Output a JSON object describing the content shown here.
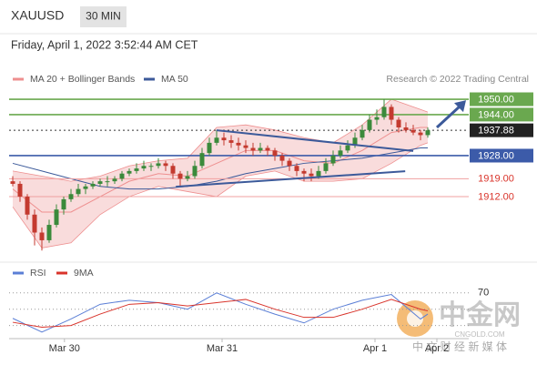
{
  "header": {
    "symbol": "XAUUSD",
    "timeframe": "30 MIN",
    "datetime": "Friday, April 1, 2022 3:52:44 AM CET",
    "credit": "Research © 2022 Trading Central"
  },
  "watermark": {
    "logo": "中金网",
    "site": "CNGOLD.COM",
    "tagline": "中 文 财 经 新 媒 体"
  },
  "chart_data": [
    {
      "type": "candlestick",
      "ylim": [
        1889.3,
        1953.2
      ],
      "xlim": [
        -1,
        63
      ],
      "xticks": [
        {
          "value": 7.1,
          "label": "Mar 30"
        },
        {
          "value": 28.75,
          "label": "Mar 31"
        },
        {
          "value": 49.75,
          "label": "Apr 1"
        },
        {
          "value": 58.25,
          "label": "Apr 2"
        }
      ],
      "up_color": "#3b8a3b",
      "down_color": "#c43a2f",
      "candles": [
        [
          1918,
          1920,
          1916,
          1917
        ],
        [
          1917,
          1918,
          1910,
          1912
        ],
        [
          1912,
          1913,
          1903,
          1905
        ],
        [
          1905,
          1907,
          1893,
          1898
        ],
        [
          1898,
          1900,
          1891,
          1895
        ],
        [
          1895,
          1903,
          1894,
          1901
        ],
        [
          1901,
          1909,
          1900,
          1907
        ],
        [
          1907,
          1912,
          1905,
          1911
        ],
        [
          1911,
          1915,
          1910,
          1913
        ],
        [
          1913,
          1917,
          1912,
          1915
        ],
        [
          1915,
          1917,
          1913,
          1916
        ],
        [
          1916,
          1918,
          1915,
          1917
        ],
        [
          1917,
          1919,
          1916,
          1918
        ],
        [
          1918,
          1920,
          1916,
          1918
        ],
        [
          1918,
          1920,
          1917,
          1919
        ],
        [
          1919,
          1922,
          1918,
          1921
        ],
        [
          1921,
          1923,
          1920,
          1922
        ],
        [
          1922,
          1925,
          1921,
          1923
        ],
        [
          1923,
          1926,
          1922,
          1924
        ],
        [
          1924,
          1925,
          1922,
          1924
        ],
        [
          1924,
          1927,
          1923,
          1925
        ],
        [
          1925,
          1926,
          1922,
          1924
        ],
        [
          1924,
          1925,
          1919,
          1921
        ],
        [
          1921,
          1922,
          1916,
          1919
        ],
        [
          1919,
          1922,
          1918,
          1920
        ],
        [
          1920,
          1926,
          1919,
          1924
        ],
        [
          1924,
          1931,
          1923,
          1929
        ],
        [
          1929,
          1935,
          1928,
          1933
        ],
        [
          1933,
          1938,
          1932,
          1935
        ],
        [
          1935,
          1937,
          1932,
          1934
        ],
        [
          1934,
          1936,
          1931,
          1933
        ],
        [
          1933,
          1935,
          1930,
          1932
        ],
        [
          1932,
          1934,
          1929,
          1931
        ],
        [
          1931,
          1933,
          1928,
          1930
        ],
        [
          1930,
          1933,
          1929,
          1931
        ],
        [
          1931,
          1932,
          1928,
          1930
        ],
        [
          1930,
          1931,
          1926,
          1928
        ],
        [
          1928,
          1929,
          1924,
          1926
        ],
        [
          1926,
          1927,
          1922,
          1924
        ],
        [
          1924,
          1925,
          1920,
          1922
        ],
        [
          1922,
          1923,
          1918,
          1921
        ],
        [
          1921,
          1923,
          1918,
          1920
        ],
        [
          1920,
          1924,
          1919,
          1922
        ],
        [
          1922,
          1927,
          1921,
          1925
        ],
        [
          1925,
          1930,
          1924,
          1928
        ],
        [
          1928,
          1932,
          1927,
          1930
        ],
        [
          1930,
          1934,
          1929,
          1932
        ],
        [
          1932,
          1937,
          1931,
          1935
        ],
        [
          1935,
          1940,
          1934,
          1938
        ],
        [
          1938,
          1944,
          1937,
          1942
        ],
        [
          1942,
          1946,
          1940,
          1943
        ],
        [
          1943,
          1950,
          1942,
          1947
        ],
        [
          1947,
          1948,
          1940,
          1942
        ],
        [
          1942,
          1943,
          1937,
          1939
        ],
        [
          1939,
          1941,
          1937,
          1938
        ],
        [
          1938,
          1940,
          1936,
          1937
        ],
        [
          1937,
          1938,
          1934,
          1936
        ],
        [
          1936,
          1939,
          1935,
          1937.88
        ]
      ],
      "indicators": {
        "x": [
          0,
          4,
          8,
          12,
          16,
          20,
          24,
          28,
          32,
          36,
          40,
          44,
          48,
          52,
          56,
          57
        ],
        "upper": [
          1922,
          1920,
          1918,
          1920,
          1924,
          1926,
          1927,
          1939,
          1940,
          1938,
          1935,
          1933,
          1940,
          1950,
          1946,
          1945
        ],
        "lower": [
          1908,
          1892,
          1894,
          1905,
          1912,
          1916,
          1914,
          1912,
          1920,
          1922,
          1918,
          1918,
          1919,
          1925,
          1932,
          1933
        ],
        "ma20": [
          1915,
          1906,
          1906,
          1912,
          1918,
          1921,
          1920,
          1925,
          1930,
          1930,
          1926,
          1925,
          1930,
          1937,
          1939,
          1939
        ],
        "ma50": [
          1925,
          1922,
          1919,
          1916,
          1915,
          1915,
          1916,
          1918,
          1921,
          1923,
          1925,
          1926,
          1927,
          1929,
          1931,
          1931
        ]
      },
      "legend": [
        {
          "name": "MA 20 + Bollinger Bands",
          "color": "#ee8f8f"
        },
        {
          "name": "MA 50",
          "color": "#3c5a9a"
        }
      ],
      "band_color": "#f7d3d3",
      "levels": {
        "values": [
          1950,
          1944,
          1937.88,
          1928,
          1919,
          1912
        ],
        "value_labels": [
          "1950.00",
          "1944.00",
          "1937.88",
          "1928.00",
          "1919.00",
          "1912.00"
        ],
        "colors": [
          "#6aa84f",
          "#6aa84f",
          "#222222",
          "#3c5ba9",
          "#d96b6b",
          "#d96b6b"
        ],
        "boxed": [
          true,
          true,
          true,
          true,
          false,
          false
        ],
        "dotted": [
          false,
          false,
          true,
          false,
          false,
          false
        ]
      },
      "trendlines": {
        "color": "#3c5a9a",
        "lines": [
          {
            "x": [
              28,
              55
            ],
            "y": [
              1937.9,
              1929.8
            ]
          },
          {
            "x": [
              22.4,
              53.9
            ],
            "y": [
              1915.9,
              1921.9
            ]
          }
        ]
      },
      "arrow": {
        "x": [
          58.25,
          62.25
        ],
        "y": [
          1939,
          1949.6
        ]
      }
    },
    {
      "type": "line",
      "ylim": [
        42,
        76
      ],
      "yticks": [
        70
      ],
      "guides": [
        60,
        50
      ],
      "x": [
        0,
        4,
        8,
        12,
        16,
        20,
        24,
        28,
        32,
        36,
        40,
        44,
        48,
        52,
        56,
        57
      ],
      "series": [
        {
          "name": "RSI",
          "color": "#5b7fd6",
          "values": [
            54.4,
            46,
            54,
            63,
            65.5,
            64,
            60,
            70,
            63,
            57,
            51.6,
            60,
            65.5,
            69,
            54,
            57
          ]
        },
        {
          "name": "9MA",
          "color": "#d9342b",
          "values": [
            52,
            49,
            50,
            57,
            63,
            64,
            62,
            64,
            66,
            60,
            55,
            55,
            60,
            66,
            60,
            59
          ]
        }
      ]
    }
  ]
}
